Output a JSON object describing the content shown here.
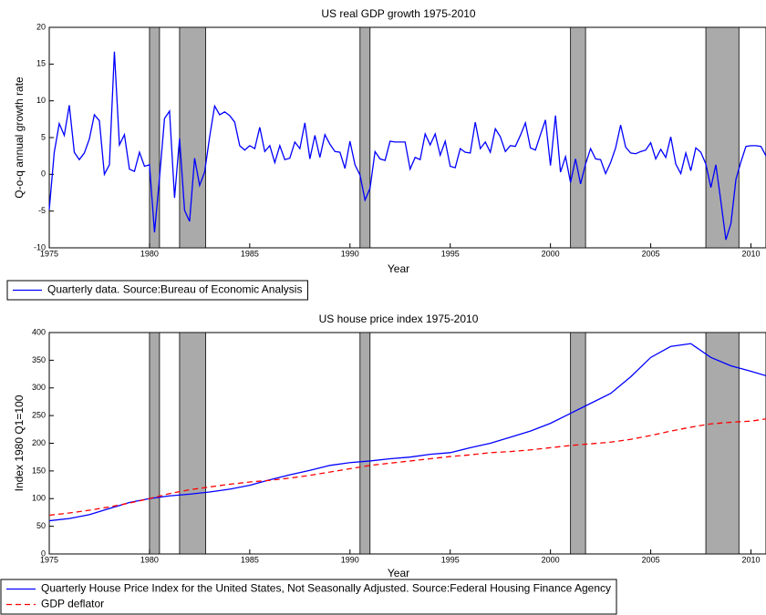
{
  "chart_data": [
    {
      "type": "line",
      "title": "US real GDP growth 1975-2010",
      "x_label": "Year",
      "y_label": "Q-o-q annual growth rate",
      "xlim": [
        1975,
        2010.75
      ],
      "xticks": [
        1975,
        1980,
        1985,
        1990,
        1995,
        2000,
        2005,
        2010
      ],
      "ylim": [
        -10,
        20
      ],
      "yticks": [
        -10,
        -5,
        0,
        5,
        10,
        15,
        20
      ],
      "shaded_regions": [
        [
          1980,
          1980.5
        ],
        [
          1981.5,
          1982.8
        ],
        [
          1990.5,
          1991
        ],
        [
          2001,
          2001.75
        ],
        [
          2007.75,
          2009.4
        ]
      ],
      "legend": "below",
      "x": [
        1975,
        1975.25,
        1975.5,
        1975.75,
        1976,
        1976.25,
        1976.5,
        1976.75,
        1977,
        1977.25,
        1977.5,
        1977.75,
        1978,
        1978.25,
        1978.5,
        1978.75,
        1979,
        1979.25,
        1979.5,
        1979.75,
        1980,
        1980.25,
        1980.5,
        1980.75,
        1981,
        1981.25,
        1981.5,
        1981.75,
        1982,
        1982.25,
        1982.5,
        1982.75,
        1983,
        1983.25,
        1983.5,
        1983.75,
        1984,
        1984.25,
        1984.5,
        1984.75,
        1985,
        1985.25,
        1985.5,
        1985.75,
        1986,
        1986.25,
        1986.5,
        1986.75,
        1987,
        1987.25,
        1987.5,
        1987.75,
        1988,
        1988.25,
        1988.5,
        1988.75,
        1989,
        1989.25,
        1989.5,
        1989.75,
        1990,
        1990.25,
        1990.5,
        1990.75,
        1991,
        1991.25,
        1991.5,
        1991.75,
        1992,
        1992.25,
        1992.5,
        1992.75,
        1993,
        1993.25,
        1993.5,
        1993.75,
        1994,
        1994.25,
        1994.5,
        1994.75,
        1995,
        1995.25,
        1995.5,
        1995.75,
        1996,
        1996.25,
        1996.5,
        1996.75,
        1997,
        1997.25,
        1997.5,
        1997.75,
        1998,
        1998.25,
        1998.5,
        1998.75,
        1999,
        1999.25,
        1999.5,
        1999.75,
        2000,
        2000.25,
        2000.5,
        2000.75,
        2001,
        2001.25,
        2001.5,
        2001.75,
        2002,
        2002.25,
        2002.5,
        2002.75,
        2003,
        2003.25,
        2003.5,
        2003.75,
        2004,
        2004.25,
        2004.5,
        2004.75,
        2005,
        2005.25,
        2005.5,
        2005.75,
        2006,
        2006.25,
        2006.5,
        2006.75,
        2007,
        2007.25,
        2007.5,
        2007.75,
        2008,
        2008.25,
        2008.5,
        2008.75,
        2009,
        2009.25,
        2009.5,
        2009.75,
        2010,
        2010.25,
        2010.5,
        2010.75
      ],
      "series": [
        {
          "name": "Quarterly data. Source:Bureau of Economic Analysis",
          "color": "#0000ff",
          "dash": false,
          "values": [
            -4.8,
            3,
            6.9,
            5.3,
            9.4,
            3,
            2,
            2.9,
            4.8,
            8.1,
            7.3,
            0,
            1.3,
            16.7,
            4,
            5.4,
            0.7,
            0.4,
            3,
            1.1,
            1.3,
            -7.9,
            -0.5,
            7.6,
            8.6,
            -3.2,
            4.9,
            -4.9,
            -6.4,
            2.2,
            -1.5,
            0.3,
            5.1,
            9.3,
            8.1,
            8.5,
            8,
            7.1,
            3.9,
            3.3,
            3.9,
            3.5,
            6.4,
            3.1,
            3.9,
            1.6,
            3.9,
            2,
            2.2,
            4.4,
            3.5,
            7,
            2.1,
            5.3,
            2.3,
            5.4,
            4.1,
            3.1,
            3,
            0.8,
            4.5,
            1.3,
            -0.1,
            -3.5,
            -1.9,
            3.1,
            2.1,
            1.9,
            4.5,
            4.4,
            4.4,
            4.4,
            0.7,
            2.3,
            2,
            5.5,
            4,
            5.5,
            2.6,
            4.5,
            1.1,
            0.9,
            3.5,
            3,
            2.9,
            7.1,
            3.5,
            4.4,
            3,
            6.2,
            5.1,
            3.1,
            3.9,
            3.8,
            5.3,
            7,
            3.6,
            3.3,
            5.4,
            7.4,
            1.2,
            8,
            0.3,
            2.4,
            -1.1,
            2.1,
            -1.3,
            1.4,
            3.5,
            2.1,
            2,
            0.1,
            1.6,
            3.6,
            6.7,
            3.7,
            2.9,
            2.8,
            3.1,
            3.3,
            4.3,
            2.1,
            3.4,
            2.3,
            5.1,
            1.4,
            0.1,
            2.9,
            0.5,
            3.6,
            3,
            1.4,
            -1.8,
            1.3,
            -3.7,
            -8.9,
            -6.7,
            -0.7,
            1.7,
            3.8,
            3.9,
            3.9,
            3.8,
            2.5
          ]
        }
      ]
    },
    {
      "type": "line",
      "title": "US house price index 1975-2010",
      "x_label": "Year",
      "y_label": "Index 1980 Q1=100",
      "xlim": [
        1975,
        2010.75
      ],
      "xticks": [
        1975,
        1980,
        1985,
        1990,
        1995,
        2000,
        2005,
        2010
      ],
      "ylim": [
        0,
        400
      ],
      "yticks": [
        0,
        50,
        100,
        150,
        200,
        250,
        300,
        350,
        400
      ],
      "shaded_regions": [
        [
          1980,
          1980.5
        ],
        [
          1981.5,
          1982.8
        ],
        [
          1990.5,
          1991
        ],
        [
          2001,
          2001.75
        ],
        [
          2007.75,
          2009.4
        ]
      ],
      "legend": "below",
      "x": [
        1975,
        1976,
        1977,
        1978,
        1979,
        1980,
        1981,
        1982,
        1983,
        1984,
        1985,
        1986,
        1987,
        1988,
        1989,
        1990,
        1991,
        1992,
        1993,
        1994,
        1995,
        1996,
        1997,
        1998,
        1999,
        2000,
        2001,
        2002,
        2003,
        2004,
        2005,
        2006,
        2007,
        2008,
        2009,
        2010,
        2010.75
      ],
      "series": [
        {
          "name": "Quarterly House Price Index for the United States, Not Seasonally Adjusted. Source:Federal Housing Finance Agency",
          "color": "#0000ff",
          "dash": false,
          "values": [
            60,
            64,
            71,
            82,
            93,
            100,
            105,
            108,
            112,
            117,
            124,
            134,
            143,
            151,
            160,
            165,
            168,
            172,
            175,
            180,
            183,
            192,
            200,
            211,
            222,
            236,
            254,
            272,
            290,
            320,
            355,
            375,
            380,
            355,
            340,
            330,
            322
          ]
        },
        {
          "name": "GDP deflator",
          "color": "#ff0000",
          "dash": true,
          "values": [
            70,
            74,
            79,
            85,
            92,
            100,
            109,
            116,
            121,
            126,
            130,
            133,
            137,
            142,
            148,
            154,
            160,
            164,
            168,
            172,
            176,
            179,
            183,
            185,
            188,
            192,
            196,
            199,
            202,
            207,
            214,
            222,
            229,
            235,
            238,
            240,
            244
          ]
        }
      ]
    }
  ]
}
